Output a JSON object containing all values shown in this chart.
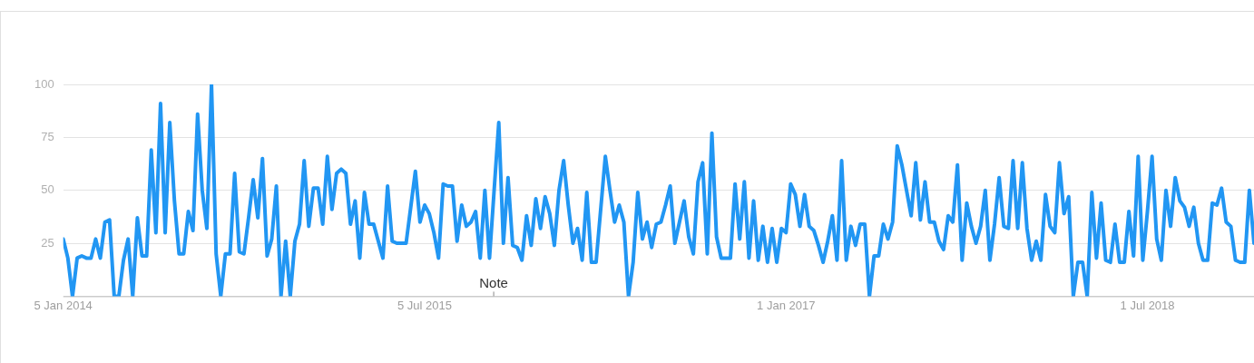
{
  "chart_data": {
    "type": "line",
    "x": [
      "2014-01-05",
      "2014-01-12",
      "2014-01-19",
      "2014-01-26",
      "2014-02-02",
      "2014-02-09",
      "2014-02-16",
      "2014-02-23",
      "2014-03-02",
      "2014-03-09",
      "2014-03-16",
      "2014-03-23",
      "2014-03-30",
      "2014-04-06",
      "2014-04-13",
      "2014-04-20",
      "2014-04-27",
      "2014-05-04",
      "2014-05-11",
      "2014-05-18",
      "2014-05-25",
      "2014-06-01",
      "2014-06-08",
      "2014-06-15",
      "2014-06-22",
      "2014-06-29",
      "2014-07-06",
      "2014-07-13",
      "2014-07-20",
      "2014-07-27",
      "2014-08-03",
      "2014-08-10",
      "2014-08-17",
      "2014-08-24",
      "2014-08-31",
      "2014-09-07",
      "2014-09-14",
      "2014-09-21",
      "2014-09-28",
      "2014-10-05",
      "2014-10-12",
      "2014-10-19",
      "2014-10-26",
      "2014-11-02",
      "2014-11-09",
      "2014-11-16",
      "2014-11-23",
      "2014-11-30",
      "2014-12-07",
      "2014-12-14",
      "2014-12-21",
      "2014-12-28",
      "2015-01-04",
      "2015-01-11",
      "2015-01-18",
      "2015-01-25",
      "2015-02-01",
      "2015-02-08",
      "2015-02-15",
      "2015-02-22",
      "2015-03-01",
      "2015-03-08",
      "2015-03-15",
      "2015-03-22",
      "2015-03-29",
      "2015-04-05",
      "2015-04-12",
      "2015-04-19",
      "2015-04-26",
      "2015-05-03",
      "2015-05-10",
      "2015-05-17",
      "2015-05-24",
      "2015-05-31",
      "2015-06-07",
      "2015-06-14",
      "2015-06-21",
      "2015-06-28",
      "2015-07-05",
      "2015-07-12",
      "2015-07-19",
      "2015-07-26",
      "2015-08-02",
      "2015-08-09",
      "2015-08-16",
      "2015-08-23",
      "2015-08-30",
      "2015-09-06",
      "2015-09-13",
      "2015-09-20",
      "2015-09-27",
      "2015-10-04",
      "2015-10-11",
      "2015-10-18",
      "2015-10-25",
      "2015-11-01",
      "2015-11-08",
      "2015-11-15",
      "2015-11-22",
      "2015-11-29",
      "2015-12-06",
      "2015-12-13",
      "2015-12-20",
      "2015-12-27",
      "2016-01-03",
      "2016-01-10",
      "2016-01-17",
      "2016-01-24",
      "2016-01-31",
      "2016-02-07",
      "2016-02-14",
      "2016-02-21",
      "2016-02-28",
      "2016-03-06",
      "2016-03-13",
      "2016-03-20",
      "2016-03-27",
      "2016-04-03",
      "2016-04-10",
      "2016-04-17",
      "2016-04-24",
      "2016-05-01",
      "2016-05-08",
      "2016-05-15",
      "2016-05-22",
      "2016-05-29",
      "2016-06-05",
      "2016-06-12",
      "2016-06-19",
      "2016-06-26",
      "2016-07-03",
      "2016-07-10",
      "2016-07-17",
      "2016-07-24",
      "2016-07-31",
      "2016-08-07",
      "2016-08-14",
      "2016-08-21",
      "2016-08-28",
      "2016-09-04",
      "2016-09-11",
      "2016-09-18",
      "2016-09-25",
      "2016-10-02",
      "2016-10-09",
      "2016-10-16",
      "2016-10-23",
      "2016-10-30",
      "2016-11-06",
      "2016-11-13",
      "2016-11-20",
      "2016-11-27",
      "2016-12-04",
      "2016-12-11",
      "2016-12-18",
      "2016-12-25",
      "2017-01-01",
      "2017-01-08",
      "2017-01-15",
      "2017-01-22",
      "2017-01-29",
      "2017-02-05",
      "2017-02-12",
      "2017-02-19",
      "2017-02-26",
      "2017-03-05",
      "2017-03-12",
      "2017-03-19",
      "2017-03-26",
      "2017-04-02",
      "2017-04-09",
      "2017-04-16",
      "2017-04-23",
      "2017-04-30",
      "2017-05-07",
      "2017-05-14",
      "2017-05-21",
      "2017-05-28",
      "2017-06-04",
      "2017-06-11",
      "2017-06-18",
      "2017-06-25",
      "2017-07-02",
      "2017-07-09",
      "2017-07-16",
      "2017-07-23",
      "2017-07-30",
      "2017-08-06",
      "2017-08-13",
      "2017-08-20",
      "2017-08-27",
      "2017-09-03",
      "2017-09-10",
      "2017-09-17",
      "2017-09-24",
      "2017-10-01",
      "2017-10-08",
      "2017-10-15",
      "2017-10-22",
      "2017-10-29",
      "2017-11-05",
      "2017-11-12",
      "2017-11-19",
      "2017-11-26",
      "2017-12-03",
      "2017-12-10",
      "2017-12-17",
      "2017-12-24",
      "2017-12-31",
      "2018-01-07",
      "2018-01-14",
      "2018-01-21",
      "2018-01-28",
      "2018-02-04",
      "2018-02-11",
      "2018-02-18",
      "2018-02-25",
      "2018-03-04",
      "2018-03-11",
      "2018-03-18",
      "2018-03-25",
      "2018-04-01",
      "2018-04-08",
      "2018-04-15",
      "2018-04-22",
      "2018-04-29",
      "2018-05-06",
      "2018-05-13",
      "2018-05-20",
      "2018-05-27",
      "2018-06-03",
      "2018-06-10",
      "2018-06-17",
      "2018-06-24",
      "2018-07-01",
      "2018-07-08",
      "2018-07-15",
      "2018-07-22",
      "2018-07-29",
      "2018-08-05",
      "2018-08-12",
      "2018-08-19",
      "2018-08-26",
      "2018-09-02",
      "2018-09-09",
      "2018-09-16",
      "2018-09-23",
      "2018-09-30",
      "2018-10-07",
      "2018-10-14",
      "2018-10-21",
      "2018-10-28",
      "2018-11-04",
      "2018-11-11",
      "2018-11-18",
      "2018-11-25",
      "2018-12-02",
      "2018-12-09"
    ],
    "series": [
      {
        "color": "#2196f3",
        "values": [
          27,
          18,
          0,
          18,
          19,
          18,
          18,
          27,
          18,
          35,
          36,
          0,
          0,
          17,
          27,
          0,
          37,
          19,
          19,
          69,
          30,
          91,
          30,
          82,
          45,
          20,
          20,
          40,
          31,
          86,
          50,
          32,
          100,
          20,
          0,
          20,
          20,
          58,
          21,
          20,
          37,
          55,
          37,
          65,
          19,
          27,
          52,
          0,
          26,
          0,
          26,
          34,
          64,
          33,
          51,
          51,
          34,
          66,
          41,
          58,
          60,
          58,
          34,
          45,
          18,
          49,
          34,
          34,
          26,
          18,
          52,
          26,
          25,
          25,
          25,
          42,
          59,
          35,
          43,
          39,
          30,
          18,
          53,
          52,
          52,
          26,
          43,
          33,
          35,
          40,
          18,
          50,
          18,
          50,
          82,
          25,
          56,
          24,
          23,
          17,
          38,
          24,
          46,
          32,
          47,
          39,
          24,
          50,
          64,
          43,
          25,
          32,
          17,
          49,
          16,
          16,
          41,
          66,
          50,
          35,
          43,
          35,
          0,
          16,
          49,
          27,
          35,
          23,
          34,
          35,
          43,
          52,
          25,
          35,
          45,
          28,
          20,
          54,
          63,
          20,
          77,
          28,
          18,
          18,
          18,
          53,
          27,
          54,
          18,
          45,
          17,
          33,
          16,
          32,
          16,
          32,
          30,
          53,
          48,
          33,
          48,
          33,
          31,
          24,
          16,
          26,
          38,
          17,
          64,
          17,
          33,
          24,
          34,
          34,
          0,
          19,
          19,
          34,
          27,
          35,
          71,
          62,
          50,
          38,
          63,
          36,
          54,
          35,
          35,
          26,
          22,
          38,
          35,
          62,
          17,
          44,
          33,
          25,
          33,
          50,
          17,
          34,
          56,
          33,
          32,
          64,
          32,
          63,
          32,
          17,
          26,
          17,
          48,
          33,
          30,
          63,
          39,
          47,
          0,
          16,
          16,
          0,
          49,
          18,
          44,
          17,
          16,
          34,
          16,
          16,
          40,
          19,
          66,
          17,
          40,
          66,
          27,
          17,
          50,
          33,
          56,
          45,
          42,
          33,
          42,
          25,
          17,
          17,
          44,
          43,
          51,
          35,
          33,
          17,
          16,
          16,
          50,
          25
        ]
      }
    ],
    "xlim": [
      "2014-01-05",
      "2018-12-09"
    ],
    "xticks": [
      {
        "value": "2014-01-05",
        "label": "5 Jan 2014"
      },
      {
        "value": "2015-07-05",
        "label": "5 Jul 2015"
      },
      {
        "value": "2017-01-01",
        "label": "1 Jan 2017"
      },
      {
        "value": "2018-07-01",
        "label": "1 Jul 2018"
      }
    ],
    "ylim": [
      0,
      100
    ],
    "yticks": [
      {
        "value": 0,
        "label": null
      },
      25,
      50,
      75,
      100
    ],
    "grid": "y",
    "marker": "none",
    "line_style": "solid",
    "legend": false,
    "annotations": [
      "Note"
    ]
  }
}
